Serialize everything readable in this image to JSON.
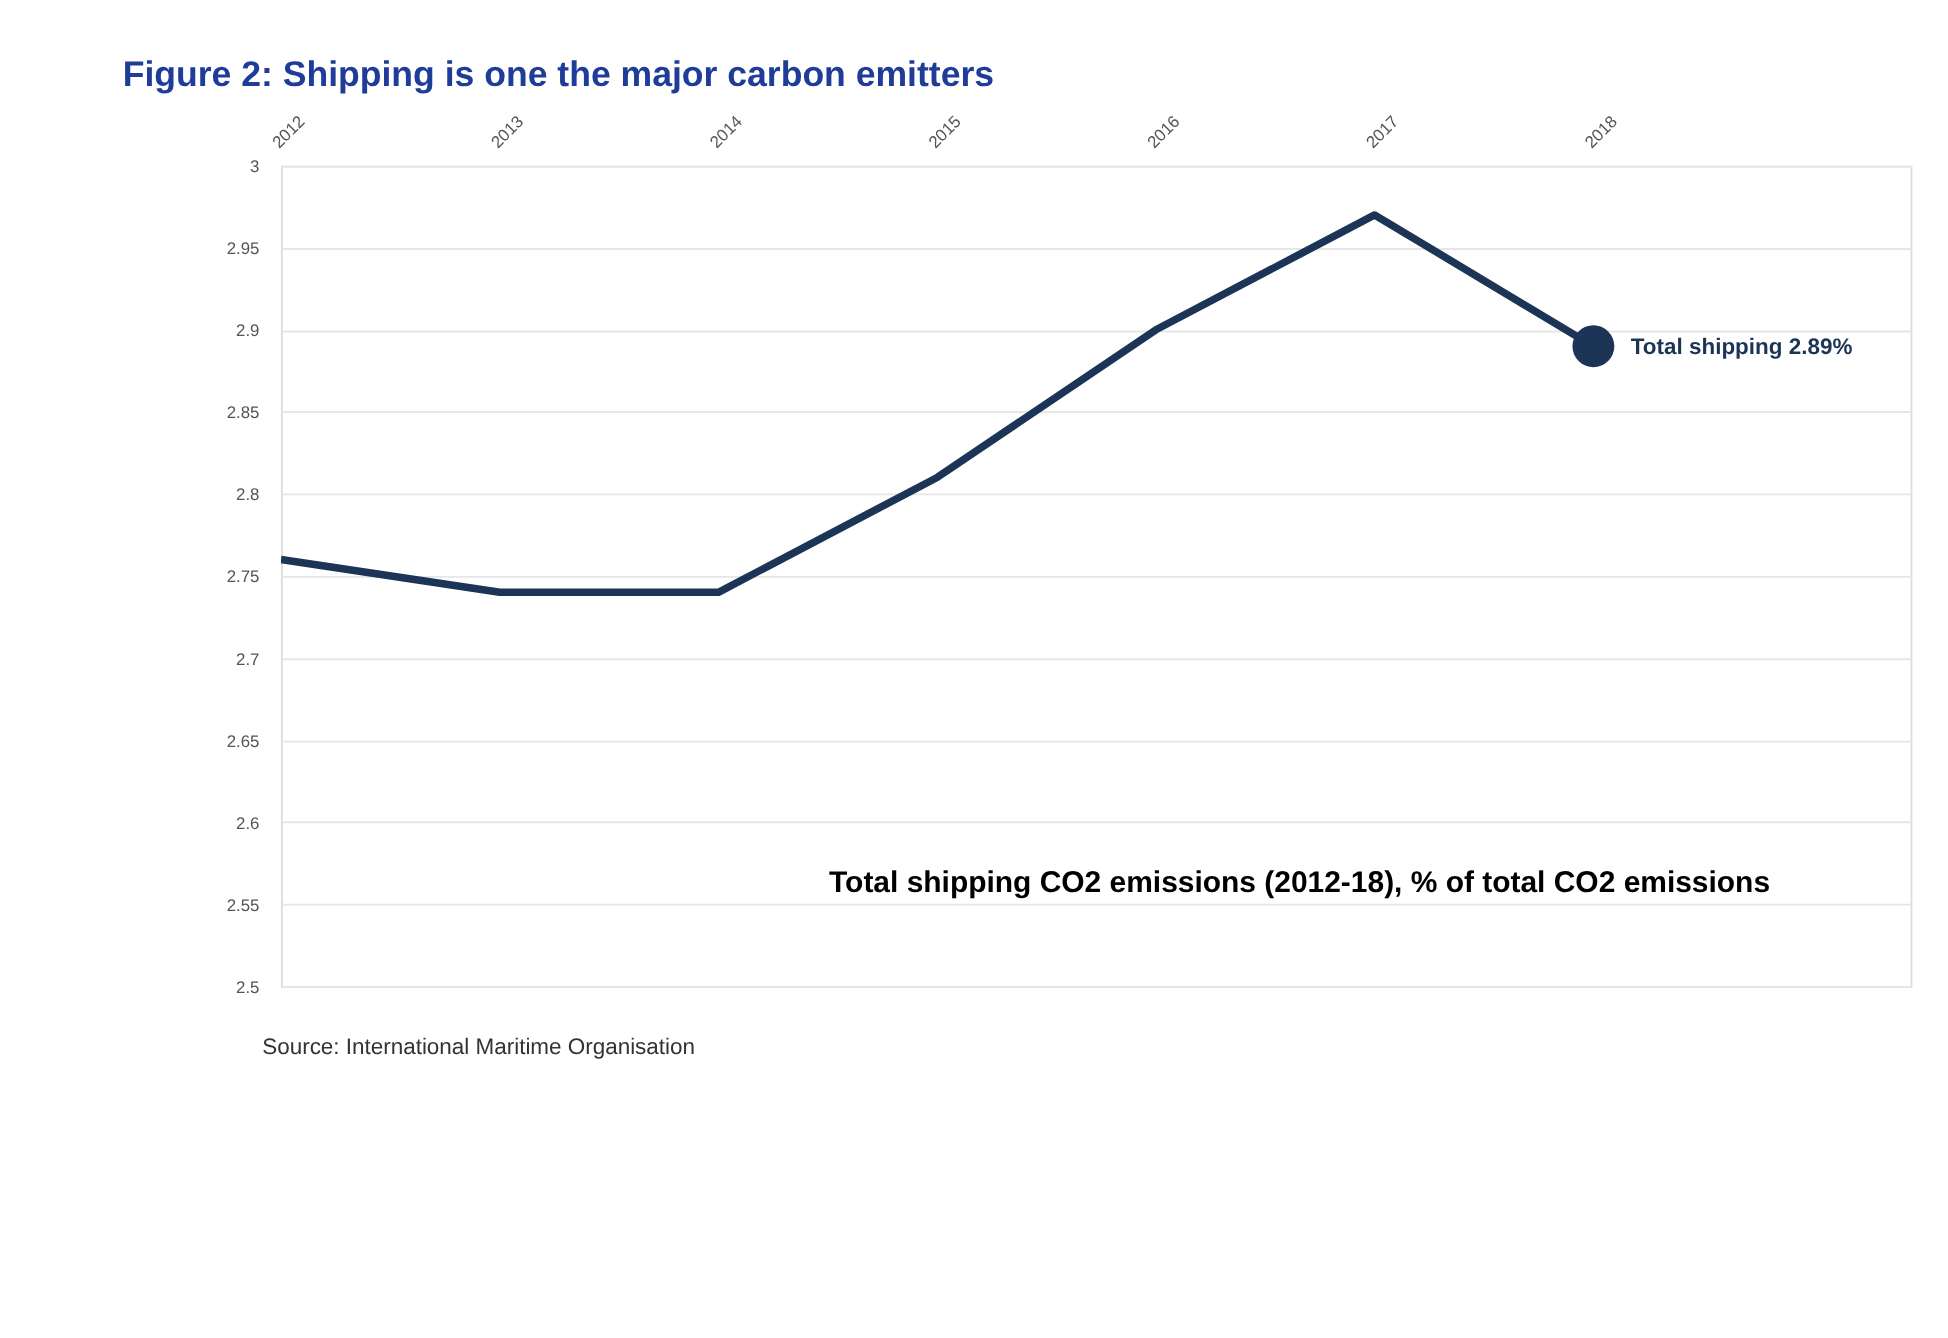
{
  "chart_data": {
    "type": "line",
    "title": "Figure 2: Shipping is one the major carbon emitters",
    "subtitle": "Total shipping CO2 emissions (2012-18), % of total CO2 emissions",
    "x": [
      2012,
      2013,
      2014,
      2015,
      2016,
      2017,
      2018
    ],
    "series": [
      {
        "color": "#1c3557",
        "values": [
          2.76,
          2.74,
          2.74,
          2.81,
          2.9,
          2.97,
          2.89
        ]
      }
    ],
    "xlim": [
      2012,
      2019.45
    ],
    "xticks": [
      2012,
      2013,
      2014,
      2015,
      2016,
      2017,
      2018
    ],
    "ylim": [
      2.5,
      3
    ],
    "yticks": [
      2.5,
      2.55,
      2.6,
      2.65,
      2.7,
      2.75,
      2.8,
      2.85,
      2.9,
      2.95,
      3
    ],
    "grid": "y",
    "line_style": "solid",
    "annotations": [
      {
        "text": "Total shipping 2.89%",
        "x": 2018,
        "y": 2.89
      },
      "Source: International Maritime Organisation"
    ]
  }
}
